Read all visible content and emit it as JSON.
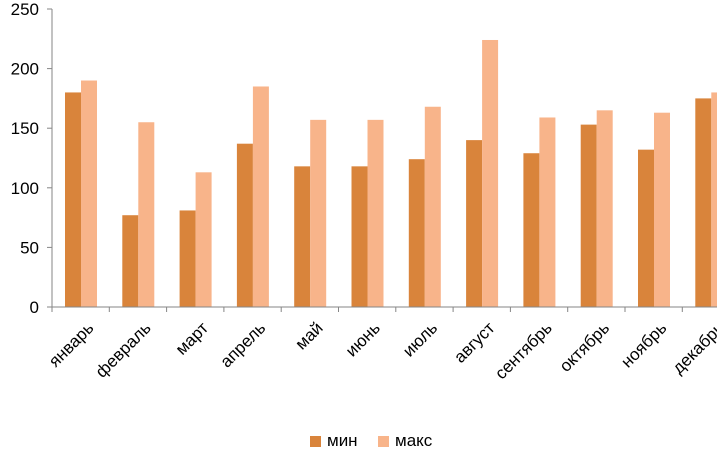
{
  "chart_data": {
    "type": "bar",
    "categories": [
      "январь",
      "февраль",
      "март",
      "апрель",
      "май",
      "июнь",
      "июль",
      "август",
      "сентябрь",
      "октябрь",
      "ноябрь",
      "декабрь"
    ],
    "series": [
      {
        "name": "мин",
        "color": "#d9843b",
        "values": [
          180,
          77,
          81,
          137,
          118,
          118,
          124,
          140,
          129,
          153,
          132,
          175
        ]
      },
      {
        "name": "макс",
        "color": "#f8b48a",
        "values": [
          190,
          155,
          113,
          185,
          157,
          157,
          168,
          224,
          159,
          165,
          163,
          180
        ]
      }
    ],
    "yticks": [
      0,
      50,
      100,
      150,
      200,
      250
    ],
    "ylim": [
      0,
      250
    ],
    "grid": false,
    "legend_position": "bottom",
    "axis_color": "#868686"
  }
}
